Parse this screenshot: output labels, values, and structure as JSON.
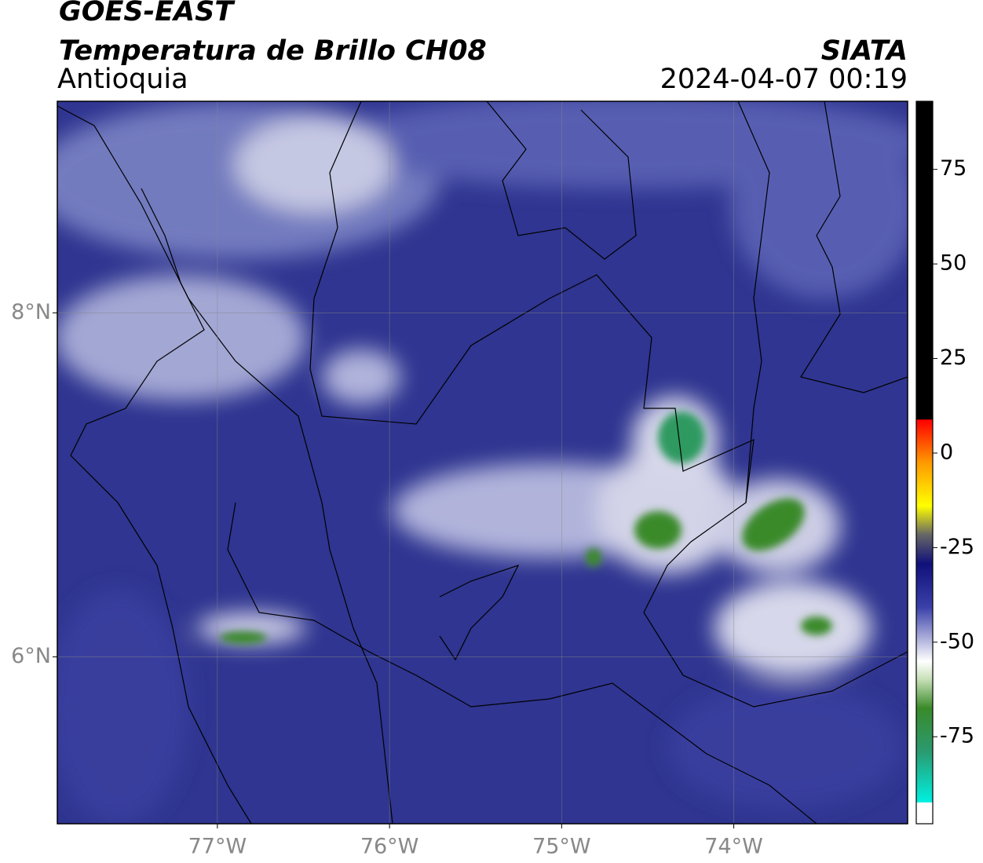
{
  "chart_data": {
    "type": "map",
    "title": "GOES-EAST",
    "subtitle": "Temperatura de Brillo CH08",
    "region": "Antioquia",
    "source": "SIATA",
    "timestamp": "2024-04-07 00:19",
    "xlim": [
      -77.93,
      -72.99
    ],
    "ylim": [
      5.03,
      9.23
    ],
    "xticks": [
      {
        "value": -77,
        "label": "77°W"
      },
      {
        "value": -76,
        "label": "76°W"
      },
      {
        "value": -75,
        "label": "75°W"
      },
      {
        "value": -74,
        "label": "74°W"
      }
    ],
    "yticks": [
      {
        "value": 6,
        "label": "6°N"
      },
      {
        "value": 8,
        "label": "8°N"
      }
    ],
    "grid": true,
    "colorbar": {
      "lim": [
        -98,
        93
      ],
      "ticks": [
        -75,
        -50,
        -25,
        0,
        25,
        50,
        75
      ]
    }
  }
}
